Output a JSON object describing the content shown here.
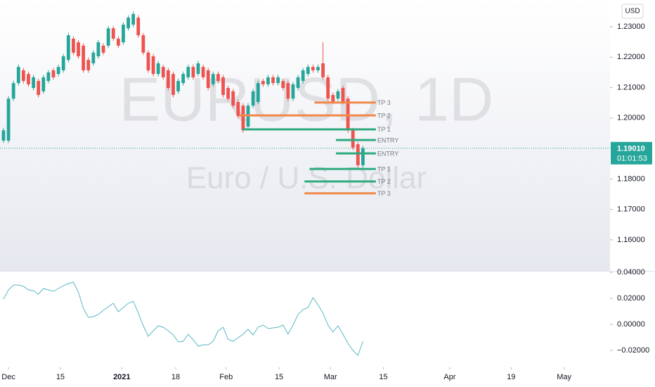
{
  "chart_data": {
    "type": "candlestick",
    "symbol": "EURUSD, 1D",
    "description": "Euro / U.S. Dollar",
    "currency": "USD",
    "up_color": "#26a69a",
    "down_color": "#ef5350",
    "xlim": [
      -0.7,
      121.5
    ],
    "xticks": [
      {
        "value": 1.0,
        "label": "Dec"
      },
      {
        "value": 11.4,
        "label": "15"
      },
      {
        "value": 23.7,
        "label": "2021"
      },
      {
        "value": 34.5,
        "label": "18"
      },
      {
        "value": 44.6,
        "label": "Feb"
      },
      {
        "value": 55.2,
        "label": "15"
      },
      {
        "value": 65.5,
        "label": "Mar"
      },
      {
        "value": 76.1,
        "label": "15"
      },
      {
        "value": 89.4,
        "label": "Apr"
      },
      {
        "value": 101.7,
        "label": "19"
      },
      {
        "value": 112.3,
        "label": "May"
      }
    ],
    "ylim": [
      1.1498,
      1.2388
    ],
    "yticks": [
      {
        "value": 1.23,
        "label": "1.23000"
      },
      {
        "value": 1.22,
        "label": "1.22000"
      },
      {
        "value": 1.21,
        "label": "1.21000"
      },
      {
        "value": 1.2,
        "label": "1.20000"
      },
      {
        "value": 1.18,
        "label": "1.18000"
      },
      {
        "value": 1.17,
        "label": "1.17000"
      },
      {
        "value": 1.16,
        "label": "1.16000"
      }
    ],
    "last_price": {
      "value": 1.1901,
      "label": "1.19010",
      "countdown": "01:01:53",
      "color": "#26a69a"
    },
    "ohlc": [
      [
        1.1926,
        1.1968,
        1.1918,
        1.196
      ],
      [
        1.1926,
        1.2072,
        1.1918,
        1.2064
      ],
      [
        1.2064,
        1.2123,
        1.2056,
        1.2115
      ],
      [
        1.2115,
        1.2176,
        1.2107,
        1.2168
      ],
      [
        1.2157,
        1.2165,
        1.2114,
        1.2122
      ],
      [
        1.2145,
        1.2153,
        1.2103,
        1.2111
      ],
      [
        1.2099,
        1.2142,
        1.2091,
        1.2134
      ],
      [
        1.2122,
        1.213,
        1.2068,
        1.2076
      ],
      [
        1.2088,
        1.2142,
        1.208,
        1.2134
      ],
      [
        1.2122,
        1.2158,
        1.2114,
        1.215
      ],
      [
        1.2157,
        1.2165,
        1.2126,
        1.2134
      ],
      [
        1.2145,
        1.2176,
        1.2137,
        1.2168
      ],
      [
        1.2157,
        1.2211,
        1.2149,
        1.2203
      ],
      [
        1.2191,
        1.228,
        1.2183,
        1.2272
      ],
      [
        1.2261,
        1.2269,
        1.2207,
        1.2215
      ],
      [
        1.2249,
        1.2257,
        1.2195,
        1.2203
      ],
      [
        1.2238,
        1.2246,
        1.2149,
        1.2157
      ],
      [
        1.2191,
        1.2199,
        1.2149,
        1.2157
      ],
      [
        1.218,
        1.2223,
        1.2172,
        1.2215
      ],
      [
        1.2203,
        1.2257,
        1.2195,
        1.2249
      ],
      [
        1.2238,
        1.2246,
        1.2207,
        1.2215
      ],
      [
        1.2238,
        1.2303,
        1.223,
        1.2295
      ],
      [
        1.2295,
        1.2303,
        1.2253,
        1.2261
      ],
      [
        1.2261,
        1.2269,
        1.223,
        1.2238
      ],
      [
        1.2249,
        1.2315,
        1.2241,
        1.2307
      ],
      [
        1.2295,
        1.2338,
        1.2287,
        1.233
      ],
      [
        1.2307,
        1.235,
        1.2299,
        1.2342
      ],
      [
        1.233,
        1.2338,
        1.2264,
        1.2272
      ],
      [
        1.2272,
        1.228,
        1.2207,
        1.2215
      ],
      [
        1.2215,
        1.2223,
        1.2149,
        1.2157
      ],
      [
        1.2203,
        1.2211,
        1.2137,
        1.2145
      ],
      [
        1.2145,
        1.2188,
        1.2137,
        1.218
      ],
      [
        1.2168,
        1.2176,
        1.2126,
        1.2134
      ],
      [
        1.2157,
        1.2165,
        1.2091,
        1.2099
      ],
      [
        1.2145,
        1.2153,
        1.2068,
        1.2076
      ],
      [
        1.2088,
        1.213,
        1.208,
        1.2122
      ],
      [
        1.2115,
        1.2153,
        1.2107,
        1.2145
      ],
      [
        1.2134,
        1.2176,
        1.2126,
        1.2168
      ],
      [
        1.2168,
        1.2176,
        1.2126,
        1.2134
      ],
      [
        1.2145,
        1.2188,
        1.2137,
        1.218
      ],
      [
        1.2168,
        1.2176,
        1.2126,
        1.2134
      ],
      [
        1.2157,
        1.2165,
        1.2091,
        1.2099
      ],
      [
        1.2111,
        1.2153,
        1.2103,
        1.2145
      ],
      [
        1.2145,
        1.2153,
        1.2114,
        1.2122
      ],
      [
        1.2134,
        1.2142,
        1.2068,
        1.2076
      ],
      [
        1.2099,
        1.2107,
        1.2056,
        1.2064
      ],
      [
        1.2088,
        1.2096,
        1.2033,
        1.2041
      ],
      [
        1.2053,
        1.2061,
        1.1999,
        1.2007
      ],
      [
        1.2041,
        1.2049,
        1.1952,
        1.196
      ],
      [
        1.1972,
        1.2049,
        1.1964,
        1.2041
      ],
      [
        1.2041,
        1.2096,
        1.2033,
        1.2088
      ],
      [
        1.2053,
        1.2123,
        1.2045,
        1.2115
      ],
      [
        1.2122,
        1.213,
        1.2103,
        1.2111
      ],
      [
        1.2111,
        1.2142,
        1.2103,
        1.2134
      ],
      [
        1.2134,
        1.2142,
        1.2107,
        1.2115
      ],
      [
        1.2115,
        1.2142,
        1.2107,
        1.2134
      ],
      [
        1.2122,
        1.213,
        1.2091,
        1.2099
      ],
      [
        1.2115,
        1.2123,
        1.2056,
        1.2064
      ],
      [
        1.2064,
        1.2119,
        1.2056,
        1.2111
      ],
      [
        1.2099,
        1.2142,
        1.2091,
        1.2134
      ],
      [
        1.2122,
        1.2165,
        1.2114,
        1.2157
      ],
      [
        1.2145,
        1.2176,
        1.2137,
        1.2168
      ],
      [
        1.2168,
        1.2176,
        1.2149,
        1.2157
      ],
      [
        1.2157,
        1.2176,
        1.2149,
        1.2168
      ],
      [
        1.218,
        1.2249,
        1.2126,
        1.2134
      ],
      [
        1.2134,
        1.2142,
        1.2056,
        1.2064
      ],
      [
        1.2076,
        1.2084,
        1.2045,
        1.2053
      ],
      [
        1.2064,
        1.2096,
        1.2056,
        1.2088
      ],
      [
        1.2099,
        1.2107,
        1.2045,
        1.2053
      ],
      [
        1.2064,
        1.2072,
        1.1952,
        1.196
      ],
      [
        1.196,
        1.1968,
        1.1895,
        1.1903
      ],
      [
        1.1914,
        1.1922,
        1.1837,
        1.1845
      ],
      [
        1.1845,
        1.1909,
        1.1837,
        1.1901
      ]
    ],
    "levels": [
      {
        "label": "TP 3",
        "value": 1.2051,
        "color": "#f0894a",
        "x0": 62.3,
        "x1": 74.6
      },
      {
        "label": "TP 2",
        "value": 1.2009,
        "color": "#f0894a",
        "x0": 47.2,
        "x1": 74.6
      },
      {
        "label": "TP 1",
        "value": 1.1963,
        "color": "#2eaa7e",
        "x0": 47.9,
        "x1": 74.6
      },
      {
        "label": "ENTRY",
        "value": 1.1928,
        "color": "#2eaa7e",
        "x0": 66.6,
        "x1": 74.6
      },
      {
        "label": "ENTRY",
        "value": 1.1884,
        "color": "#2eaa7e",
        "x0": 66.6,
        "x1": 74.6
      },
      {
        "label": "TP 1",
        "value": 1.1833,
        "color": "#2eaa7e",
        "x0": 61.3,
        "x1": 74.6
      },
      {
        "label": "TP 2",
        "value": 1.1792,
        "color": "#2eaa7e",
        "x0": 60.3,
        "x1": 74.6
      },
      {
        "label": "TP 3",
        "value": 1.1753,
        "color": "#f0894a",
        "x0": 60.3,
        "x1": 74.6
      }
    ],
    "indicator": {
      "type": "line",
      "color": "#5ab8c4",
      "ylim": [
        -0.033,
        0.0411
      ],
      "yticks": [
        {
          "value": 0.04,
          "label": "0.04000"
        },
        {
          "value": 0.02,
          "label": "0.02000"
        },
        {
          "value": 0,
          "label": "0.00000"
        },
        {
          "value": -0.02,
          "label": "−0.02000"
        }
      ],
      "values": [
        0.0195,
        0.0265,
        0.0303,
        0.0303,
        0.0292,
        0.0265,
        0.0259,
        0.0232,
        0.0276,
        0.0265,
        0.0254,
        0.0276,
        0.0297,
        0.0314,
        0.0324,
        0.0249,
        0.0124,
        0.0054,
        0.0059,
        0.0076,
        0.0108,
        0.0135,
        0.0162,
        0.0097,
        0.013,
        0.0162,
        0.0178,
        0.0086,
        -0.0011,
        -0.0092,
        -0.0049,
        -0.0011,
        -0.0022,
        -0.0049,
        -0.0081,
        -0.0135,
        -0.013,
        -0.0076,
        -0.0119,
        -0.0168,
        -0.0157,
        -0.0157,
        -0.013,
        -0.0049,
        -0.0022,
        -0.0114,
        -0.013,
        -0.0103,
        -0.0076,
        -0.0038,
        -0.0081,
        -0.0022,
        -0.0005,
        -0.0032,
        -0.0027,
        -0.0022,
        -0.0005,
        -0.0076,
        -0.0005,
        0.0076,
        0.0114,
        0.013,
        0.0205,
        0.0151,
        0.0086,
        -0.0005,
        -0.0059,
        -0.0011,
        -0.0076,
        -0.0146,
        -0.02,
        -0.0238,
        -0.013
      ]
    }
  }
}
